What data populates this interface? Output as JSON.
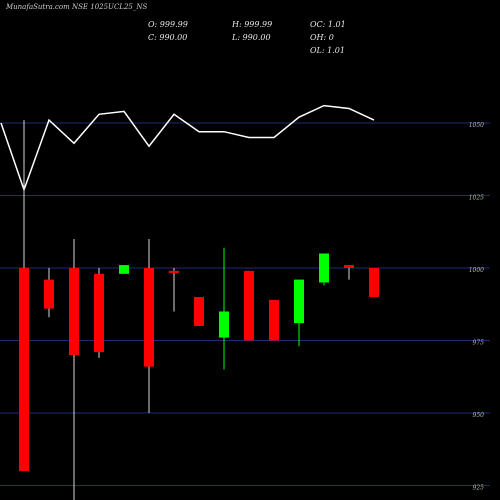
{
  "header": {
    "title": "MunafaSutra.com NSE 1025UCL25_NS",
    "o_label": "O: 999.99",
    "h_label": "H: 999.99",
    "oc_label": "OC: 1.01",
    "c_label": "C: 990.00",
    "l_label": "L: 990.00",
    "oh_label": "OH: 0",
    "ol_label": "OL: 1.01"
  },
  "colors": {
    "background": "#000000",
    "bull": "#00ff00",
    "bear": "#ff0000",
    "gridline": "#1c2d7a",
    "overlay_line": "#ffffff"
  },
  "chart_data": {
    "type": "candlestick",
    "title": "MunafaSutra.com NSE 1025UCL25_NS",
    "ylim": [
      920,
      1065
    ],
    "ticks": [
      {
        "value": 1050,
        "label": "1050"
      },
      {
        "value": 1025,
        "label": "1025"
      },
      {
        "value": 1000,
        "label": "1000"
      },
      {
        "value": 975,
        "label": "975"
      },
      {
        "value": 950,
        "label": "950"
      },
      {
        "value": 925,
        "label": "925"
      }
    ],
    "grid": true,
    "candles": [
      {
        "o": 1000,
        "h": 1051,
        "l": 930,
        "c": 930
      },
      {
        "o": 996,
        "h": 1000,
        "l": 983,
        "c": 986
      },
      {
        "o": 1000,
        "h": 1010,
        "l": 920,
        "c": 970
      },
      {
        "o": 998,
        "h": 1000,
        "l": 969,
        "c": 971
      },
      {
        "o": 998,
        "h": 1001,
        "l": 998,
        "c": 1001
      },
      {
        "o": 1000,
        "h": 1010,
        "l": 950,
        "c": 966
      },
      {
        "o": 999,
        "h": 1000,
        "l": 985,
        "c": 999
      },
      {
        "o": 990,
        "h": 990,
        "l": 980,
        "c": 980
      },
      {
        "o": 976,
        "h": 1007,
        "l": 965,
        "c": 985
      },
      {
        "o": 999,
        "h": 999,
        "l": 975,
        "c": 975
      },
      {
        "o": 989,
        "h": 989,
        "l": 975,
        "c": 975
      },
      {
        "o": 981,
        "h": 996,
        "l": 973,
        "c": 996
      },
      {
        "o": 995,
        "h": 1005,
        "l": 994,
        "c": 1005
      },
      {
        "o": 1001,
        "h": 1001,
        "l": 996,
        "c": 1000
      },
      {
        "o": 999.99,
        "h": 999.99,
        "l": 990,
        "c": 990
      }
    ],
    "overlay_line": [
      1050,
      1027,
      1051,
      1043,
      1053,
      1054,
      1042,
      1053,
      1047,
      1047,
      1045,
      1045,
      1052,
      1056,
      1055,
      1051
    ]
  }
}
